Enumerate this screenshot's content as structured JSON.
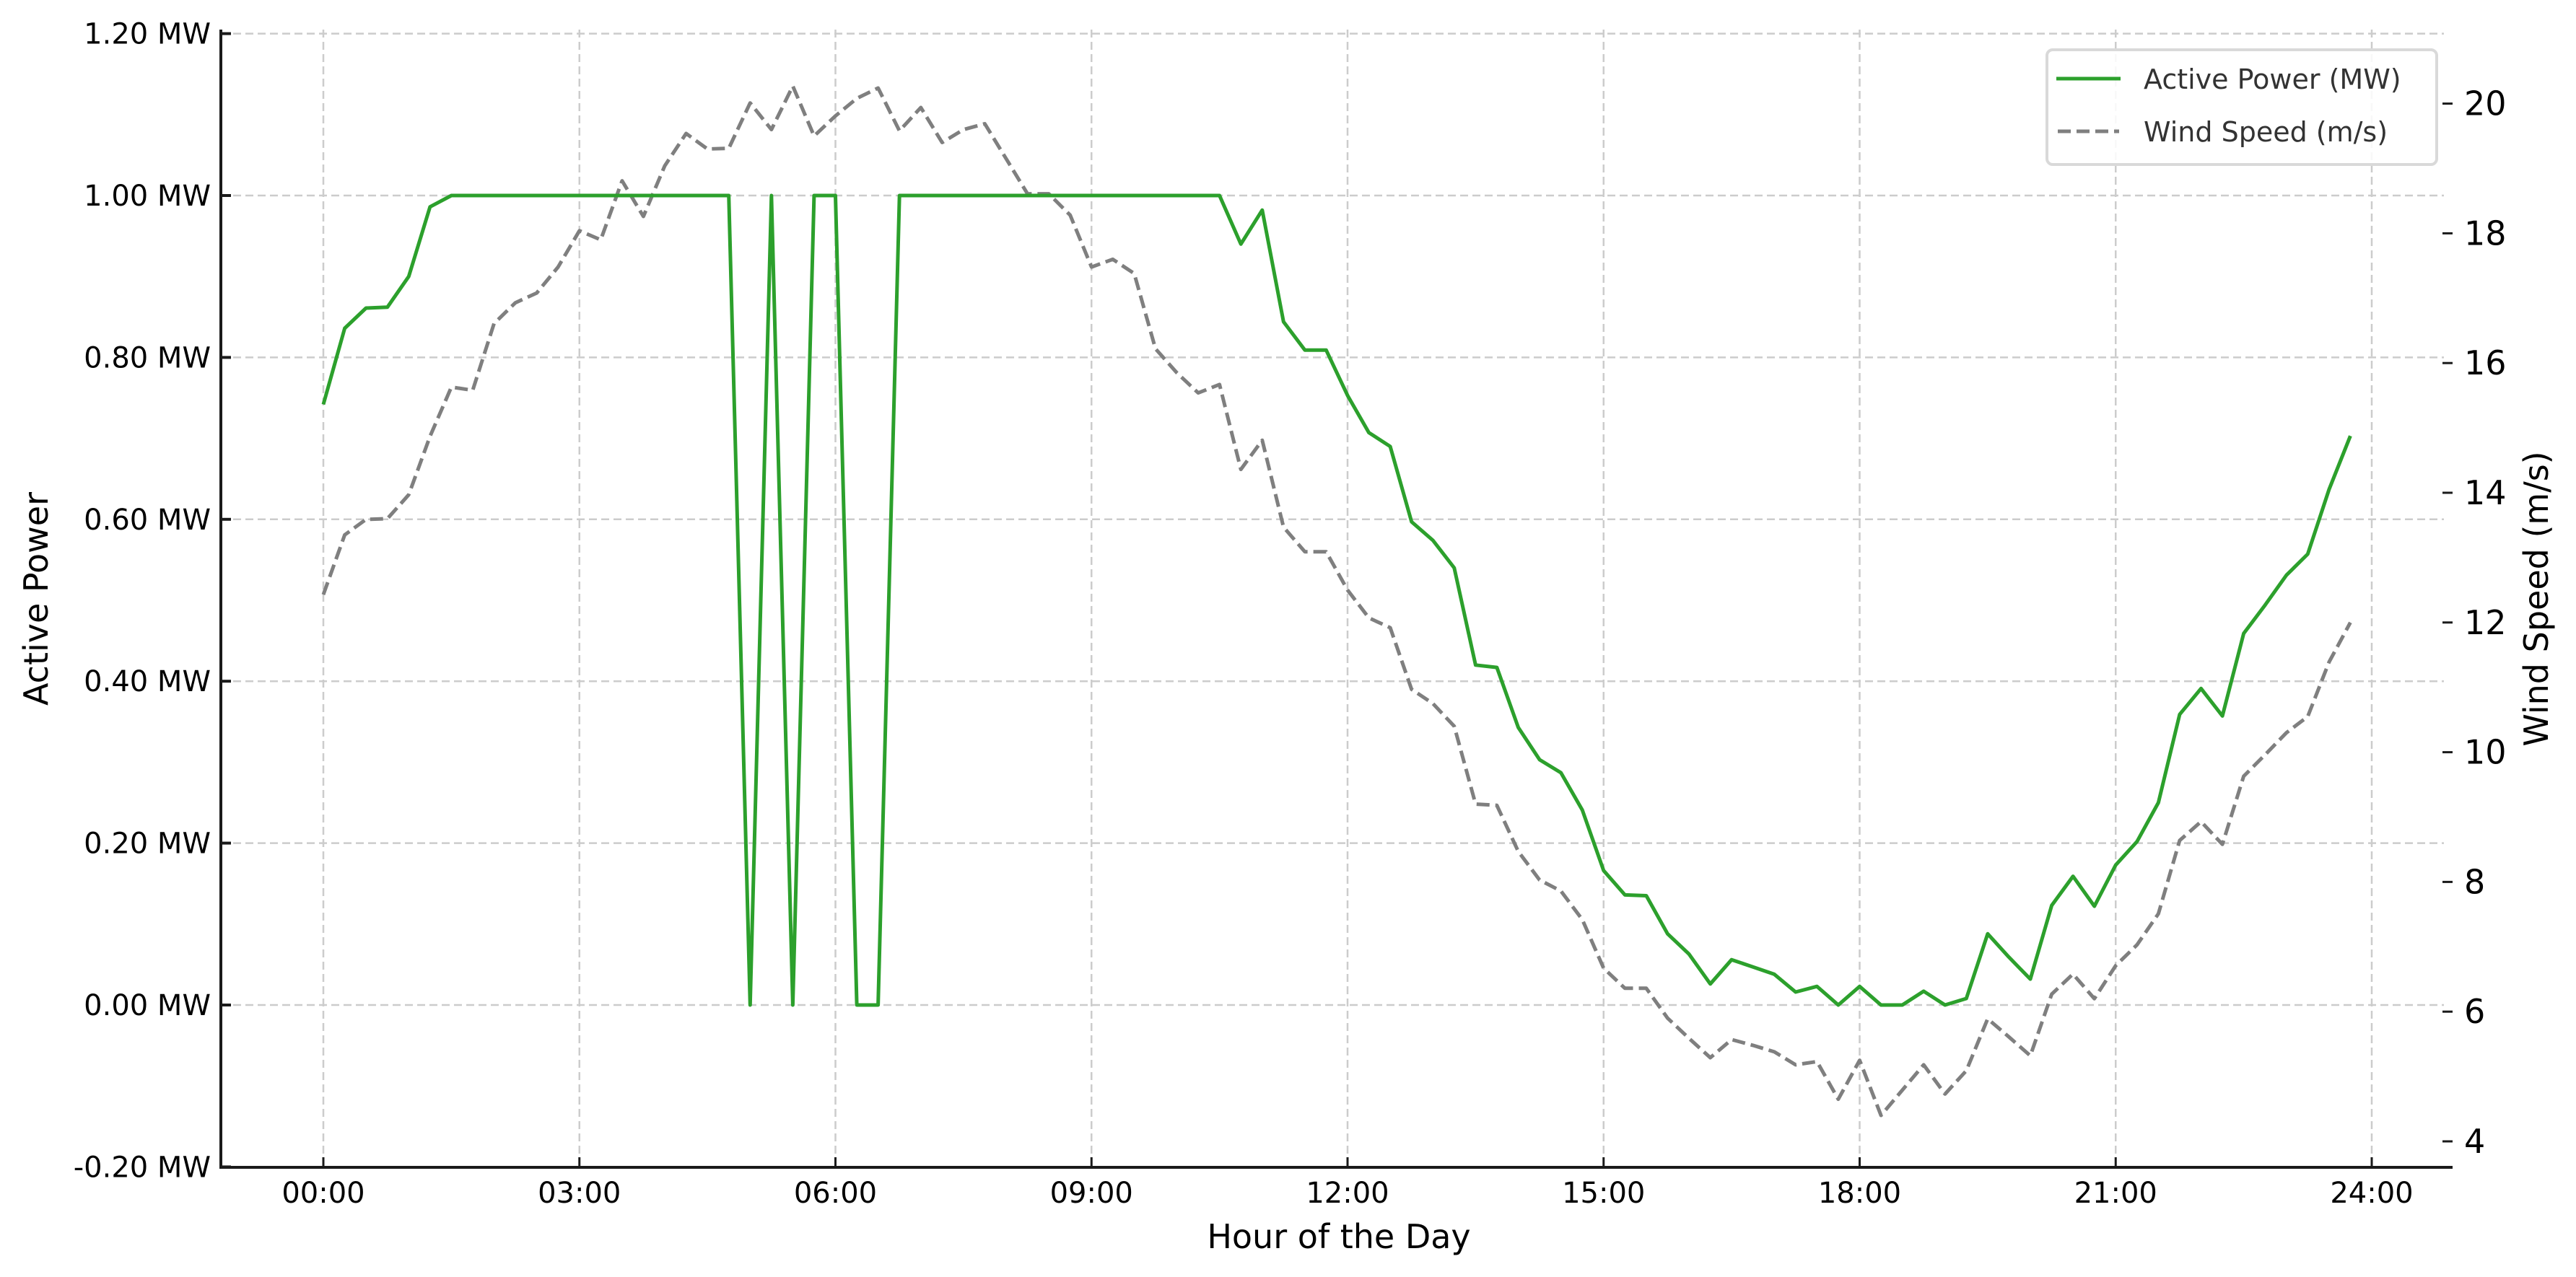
{
  "chart_data": {
    "type": "line",
    "title": "",
    "xlabel": "Hour of the Day",
    "ylabel": "Active Power",
    "y2label": "Wind Speed (m/s)",
    "x_tick_labels": [
      "00:00",
      "03:00",
      "06:00",
      "09:00",
      "12:00",
      "15:00",
      "18:00",
      "21:00",
      "24:00"
    ],
    "x_tick_hours": [
      0,
      3,
      6,
      9,
      12,
      15,
      18,
      21,
      24
    ],
    "y_tick_labels": [
      "-0.20 MW",
      "0.00 MW",
      "0.20 MW",
      "0.40 MW",
      "0.60 MW",
      "0.80 MW",
      "1.00 MW",
      "1.20 MW"
    ],
    "y_ticks": [
      -0.2,
      0.0,
      0.2,
      0.4,
      0.6,
      0.8,
      1.0,
      1.2
    ],
    "y2_tick_labels": [
      "4",
      "6",
      "8",
      "10",
      "12",
      "14",
      "16",
      "18",
      "20"
    ],
    "y2_ticks": [
      4,
      6,
      8,
      10,
      12,
      14,
      16,
      18,
      20
    ],
    "ylim": [
      -0.2,
      1.2
    ],
    "y2lim": [
      3.6,
      21.1
    ],
    "xlim_hours": [
      -1.2,
      25.2
    ],
    "grid": true,
    "legend_position": "upper right",
    "interval_minutes": 15,
    "x": [
      "00:00",
      "00:15",
      "00:30",
      "00:45",
      "01:00",
      "01:15",
      "01:30",
      "01:45",
      "02:00",
      "02:15",
      "02:30",
      "02:45",
      "03:00",
      "03:15",
      "03:30",
      "03:45",
      "04:00",
      "04:15",
      "04:30",
      "04:45",
      "05:00",
      "05:15",
      "05:30",
      "05:45",
      "06:00",
      "06:15",
      "06:30",
      "06:45",
      "07:00",
      "07:15",
      "07:30",
      "07:45",
      "08:00",
      "08:15",
      "08:30",
      "08:45",
      "09:00",
      "09:15",
      "09:30",
      "09:45",
      "10:00",
      "10:15",
      "10:30",
      "10:45",
      "11:00",
      "11:15",
      "11:30",
      "11:45",
      "12:00",
      "12:15",
      "12:30",
      "12:45",
      "13:00",
      "13:15",
      "13:30",
      "13:45",
      "14:00",
      "14:15",
      "14:30",
      "14:45",
      "15:00",
      "15:15",
      "15:30",
      "15:45",
      "16:00",
      "16:15",
      "16:30",
      "16:45",
      "17:00",
      "17:15",
      "17:30",
      "17:45",
      "18:00",
      "18:15",
      "18:30",
      "18:45",
      "19:00",
      "19:15",
      "19:30",
      "19:45",
      "20:00",
      "20:15",
      "20:30",
      "20:45",
      "21:00",
      "21:15",
      "21:30",
      "21:45",
      "22:00",
      "22:15",
      "22:30",
      "22:45",
      "23:00",
      "23:15",
      "23:30",
      "23:45"
    ],
    "series": [
      {
        "name": "Active Power (MW)",
        "axis": "left",
        "color": "#2ca02c",
        "style": "solid",
        "values": [
          0.742,
          0.836,
          0.861,
          0.862,
          0.9,
          0.986,
          1.0,
          1.0,
          1.0,
          1.0,
          1.0,
          1.0,
          1.0,
          1.0,
          1.0,
          1.0,
          1.0,
          1.0,
          1.0,
          1.0,
          0.0,
          1.0,
          0.0,
          1.0,
          1.0,
          0.0,
          0.0,
          1.0,
          1.0,
          1.0,
          1.0,
          1.0,
          1.0,
          1.0,
          1.0,
          1.0,
          1.0,
          1.0,
          1.0,
          1.0,
          1.0,
          1.0,
          1.0,
          0.94,
          0.982,
          0.844,
          0.809,
          0.809,
          0.753,
          0.707,
          0.69,
          0.597,
          0.574,
          0.54,
          0.42,
          0.417,
          0.343,
          0.303,
          0.287,
          0.241,
          0.166,
          0.136,
          0.135,
          0.088,
          0.063,
          0.026,
          0.056,
          0.047,
          0.038,
          0.016,
          0.023,
          0.0,
          0.023,
          0.0,
          0.0,
          0.017,
          0.0,
          0.008,
          0.088,
          0.059,
          0.032,
          0.123,
          0.159,
          0.122,
          0.173,
          0.202,
          0.25,
          0.359,
          0.391,
          0.357,
          0.459,
          0.494,
          0.531,
          0.557,
          0.637,
          0.703
        ]
      },
      {
        "name": "Wind Speed (m/s)",
        "axis": "right",
        "color": "#7f7f7f",
        "style": "dashed",
        "values": [
          12.43,
          13.35,
          13.59,
          13.6,
          13.97,
          14.87,
          15.63,
          15.58,
          16.61,
          16.93,
          17.08,
          17.48,
          18.04,
          17.9,
          18.81,
          18.26,
          19.04,
          19.54,
          19.3,
          19.31,
          20.01,
          19.6,
          20.27,
          19.5,
          19.81,
          20.08,
          20.24,
          19.58,
          19.94,
          19.4,
          19.6,
          19.69,
          19.15,
          18.61,
          18.61,
          18.28,
          17.48,
          17.6,
          17.38,
          16.22,
          15.85,
          15.54,
          15.67,
          14.36,
          14.81,
          13.47,
          13.09,
          13.09,
          12.5,
          12.07,
          11.92,
          10.97,
          10.75,
          10.4,
          9.2,
          9.18,
          8.47,
          8.03,
          7.86,
          7.42,
          6.67,
          6.36,
          6.36,
          5.9,
          5.59,
          5.29,
          5.57,
          5.48,
          5.38,
          5.18,
          5.23,
          4.65,
          5.25,
          4.4,
          4.79,
          5.18,
          4.73,
          5.09,
          5.89,
          5.61,
          5.32,
          6.27,
          6.58,
          6.2,
          6.71,
          7.03,
          7.51,
          8.64,
          8.93,
          8.58,
          9.63,
          9.96,
          10.3,
          10.55,
          11.39,
          12.0
        ]
      }
    ]
  },
  "legend": {
    "items": [
      {
        "label": "Active Power (MW)",
        "color": "#2ca02c",
        "style": "solid"
      },
      {
        "label": "Wind Speed (m/s)",
        "color": "#7f7f7f",
        "style": "dashed"
      }
    ]
  },
  "colors": {
    "power": "#2ca02c",
    "wind": "#7f7f7f",
    "grid": "#cccccc",
    "axis": "#1a1a1a",
    "legend_border": "#d9d9d9",
    "legend_text": "#333333"
  }
}
